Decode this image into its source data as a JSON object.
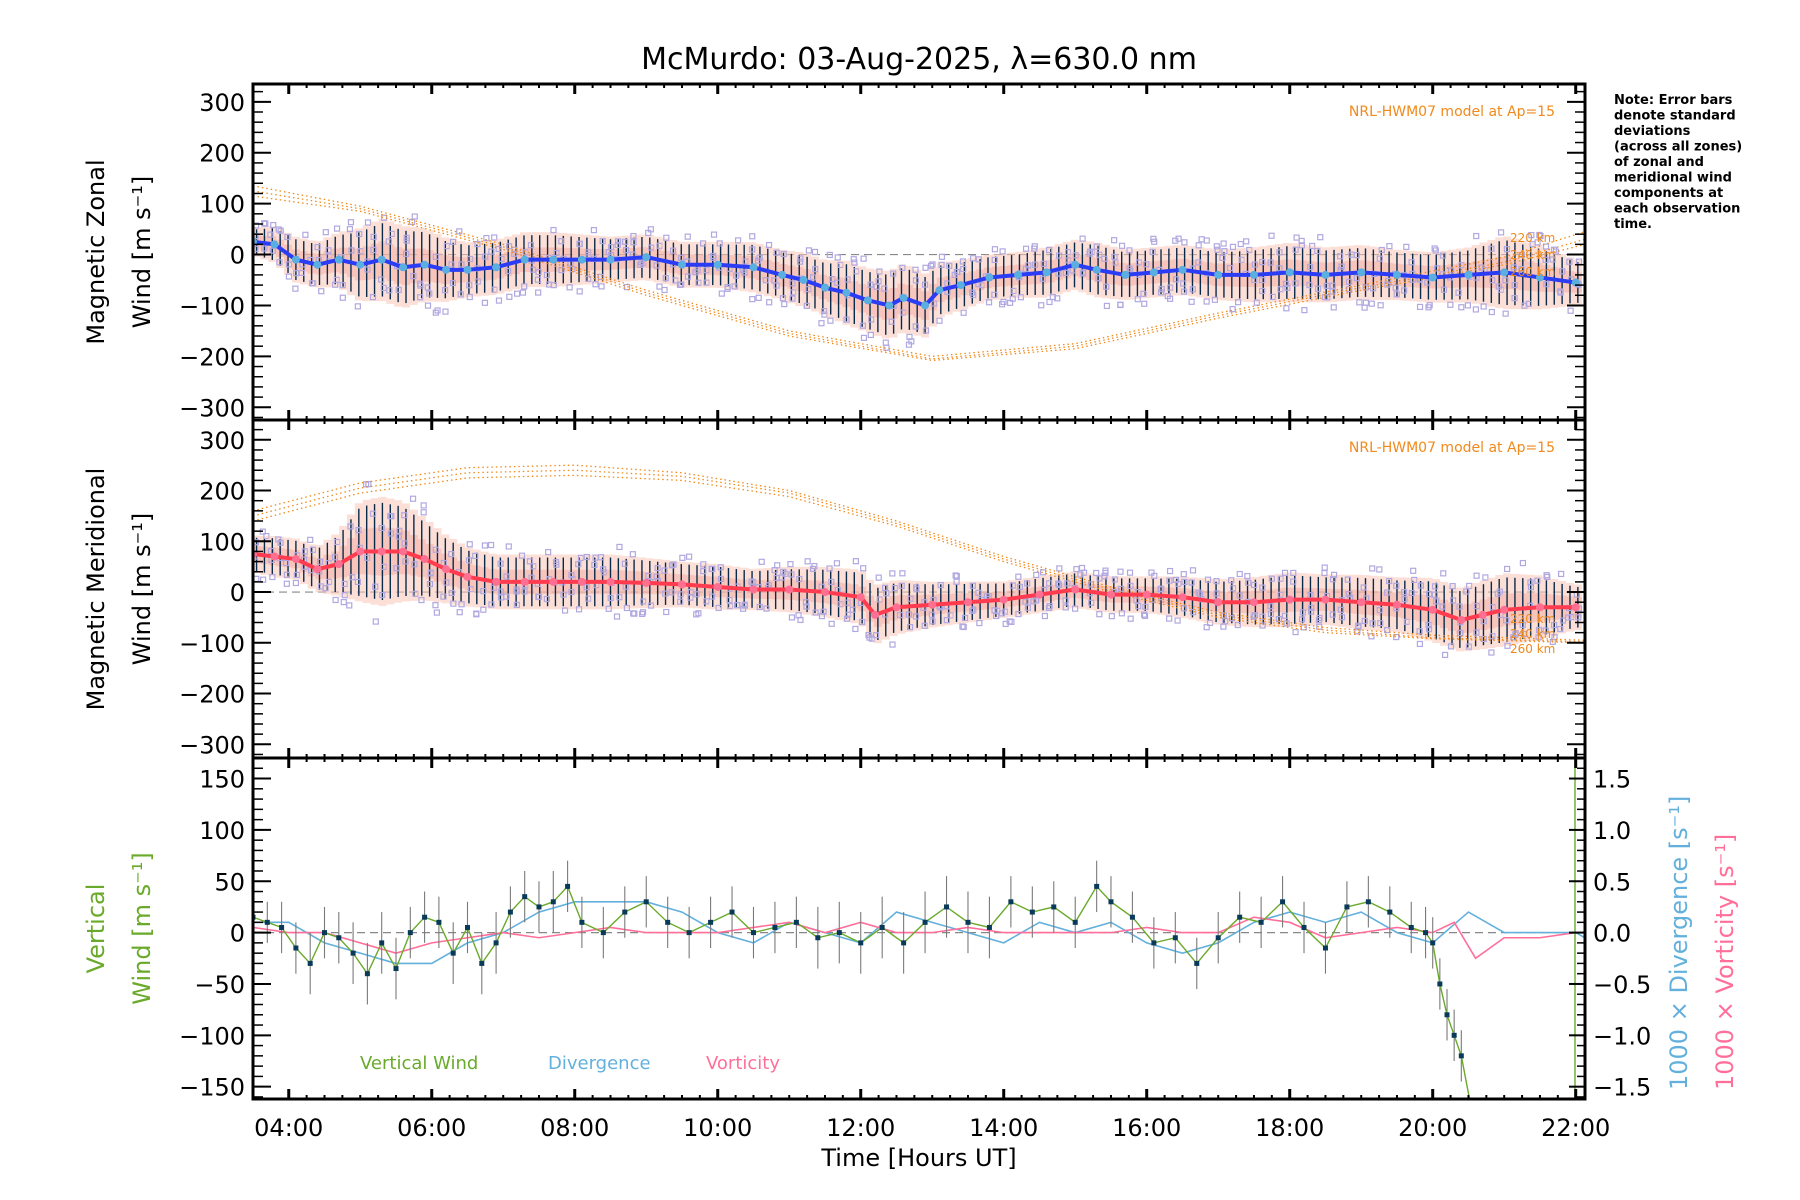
{
  "title": "McMurdo: 03-Aug-2025, λ=630.0 nm",
  "note": [
    "Note: Error bars",
    "denote standard",
    "deviations",
    "(across all zones)",
    "of zonal and",
    "meridional wind",
    "components at",
    "each observation",
    "time."
  ],
  "colors": {
    "zonal": "#2b3cf5",
    "zonal_marker": "#5aaee0",
    "meridional": "#ff3b50",
    "meridional_marker": "#ff6f91",
    "model": "#f08a1c",
    "zone_points": "#b0a8e0",
    "error_bar": "#0a2a4a",
    "vertical": "#6aaa2a",
    "divergence": "#64b0dc",
    "vorticity": "#ff6f9a",
    "vertical_marker": "#0a3a5a",
    "zero_line": "#888888"
  },
  "chart_data": [
    {
      "type": "line",
      "id": "zonal",
      "ylabel_line1": "Magnetic Zonal",
      "ylabel_line2": "Wind [m s⁻¹]",
      "ylim": [
        -325,
        335
      ],
      "yticks": [
        -300,
        -200,
        -100,
        0,
        100,
        200,
        300
      ],
      "ytick_labels": [
        "−300",
        "−200",
        "−100",
        "0",
        "100",
        "200",
        "300"
      ],
      "xlim": [
        3.5,
        22.13
      ],
      "model_label": "NRL-HWM07 model at Ap=15",
      "model_altitudes": [
        "220 km",
        "240 km",
        "260 km"
      ],
      "series": [
        {
          "name": "Zonal wind",
          "x": [
            3.5,
            3.8,
            4.1,
            4.4,
            4.7,
            5.0,
            5.3,
            5.6,
            5.9,
            6.2,
            6.5,
            6.9,
            7.3,
            7.7,
            8.1,
            8.5,
            9.0,
            9.5,
            10.0,
            10.5,
            10.9,
            11.2,
            11.5,
            11.8,
            12.1,
            12.4,
            12.6,
            12.9,
            13.1,
            13.4,
            13.8,
            14.2,
            14.6,
            15.0,
            15.3,
            15.7,
            16.1,
            16.5,
            17.0,
            17.5,
            18.0,
            18.5,
            19.0,
            19.5,
            20.0,
            20.5,
            21.0,
            21.5,
            22.0
          ],
          "y": [
            25,
            20,
            -10,
            -20,
            -10,
            -20,
            -10,
            -25,
            -20,
            -30,
            -30,
            -25,
            -10,
            -10,
            -10,
            -10,
            -5,
            -20,
            -20,
            -25,
            -40,
            -50,
            -65,
            -75,
            -90,
            -100,
            -85,
            -100,
            -70,
            -60,
            -45,
            -40,
            -35,
            -20,
            -30,
            -40,
            -35,
            -30,
            -40,
            -40,
            -35,
            -40,
            -35,
            -40,
            -45,
            -40,
            -35,
            -45,
            -55
          ],
          "err": [
            30,
            40,
            50,
            50,
            60,
            80,
            90,
            90,
            80,
            70,
            60,
            60,
            60,
            60,
            55,
            50,
            50,
            50,
            50,
            55,
            55,
            60,
            60,
            70,
            70,
            75,
            75,
            70,
            60,
            55,
            50,
            50,
            55,
            55,
            60,
            55,
            55,
            55,
            55,
            60,
            65,
            60,
            60,
            55,
            55,
            60,
            80,
            70,
            50
          ]
        },
        {
          "name": "HWM07 220 km",
          "x": [
            3.5,
            5,
            7,
            9,
            11,
            13,
            15,
            17,
            19,
            21,
            22.13
          ],
          "y": [
            135,
            95,
            20,
            -70,
            -150,
            -200,
            -175,
            -115,
            -60,
            -5,
            45
          ]
        },
        {
          "name": "HWM07 240 km",
          "x": [
            3.5,
            5,
            7,
            9,
            11,
            13,
            15,
            17,
            19,
            21,
            22.13
          ],
          "y": [
            125,
            90,
            15,
            -75,
            -155,
            -205,
            -180,
            -120,
            -65,
            -15,
            30
          ]
        },
        {
          "name": "HWM07 260 km",
          "x": [
            3.5,
            5,
            7,
            9,
            11,
            13,
            15,
            17,
            19,
            21,
            22.13
          ],
          "y": [
            115,
            85,
            10,
            -80,
            -160,
            -208,
            -185,
            -125,
            -70,
            -20,
            20
          ]
        }
      ]
    },
    {
      "type": "line",
      "id": "meridional",
      "ylabel_line1": "Magnetic Meridional",
      "ylabel_line2": "Wind [m s⁻¹]",
      "ylim": [
        -327,
        339
      ],
      "yticks": [
        -300,
        -200,
        -100,
        0,
        100,
        200,
        300
      ],
      "ytick_labels": [
        "−300",
        "−200",
        "−100",
        "0",
        "100",
        "200",
        "300"
      ],
      "xlim": [
        3.5,
        22.13
      ],
      "model_label": "NRL-HWM07 model at Ap=15",
      "model_altitudes": [
        "220 km",
        "240 km",
        "260 km"
      ],
      "series": [
        {
          "name": "Meridional wind",
          "x": [
            3.5,
            3.8,
            4.1,
            4.4,
            4.7,
            5.0,
            5.3,
            5.6,
            5.9,
            6.2,
            6.5,
            6.9,
            7.3,
            7.7,
            8.1,
            8.5,
            9.0,
            9.5,
            10.0,
            10.5,
            11.0,
            11.5,
            12.0,
            12.2,
            12.5,
            13.0,
            13.5,
            14.0,
            14.5,
            15.0,
            15.5,
            16.0,
            16.5,
            17.0,
            17.5,
            18.0,
            18.5,
            19.0,
            19.5,
            20.0,
            20.4,
            20.7,
            21.0,
            21.5,
            22.0
          ],
          "y": [
            75,
            70,
            65,
            45,
            55,
            80,
            80,
            80,
            65,
            45,
            30,
            20,
            20,
            20,
            20,
            20,
            18,
            15,
            10,
            5,
            5,
            0,
            -10,
            -45,
            -30,
            -25,
            -20,
            -15,
            -5,
            5,
            -5,
            -5,
            -10,
            -20,
            -20,
            -15,
            -15,
            -20,
            -25,
            -35,
            -55,
            -45,
            -35,
            -30,
            -30
          ],
          "err": [
            40,
            45,
            45,
            50,
            70,
            110,
            120,
            110,
            90,
            75,
            65,
            60,
            60,
            60,
            60,
            60,
            55,
            50,
            50,
            45,
            50,
            55,
            60,
            65,
            60,
            50,
            45,
            40,
            40,
            40,
            40,
            40,
            45,
            50,
            55,
            60,
            55,
            60,
            60,
            70,
            70,
            75,
            80,
            70,
            50
          ]
        },
        {
          "name": "HWM07 220 km",
          "x": [
            3.5,
            5,
            6.5,
            8,
            9.5,
            11,
            12.5,
            14,
            15.5,
            17,
            18.5,
            20,
            22.13
          ],
          "y": [
            160,
            215,
            245,
            250,
            235,
            200,
            140,
            70,
            10,
            -40,
            -70,
            -85,
            -95
          ]
        },
        {
          "name": "HWM07 240 km",
          "x": [
            3.5,
            5,
            6.5,
            8,
            9.5,
            11,
            12.5,
            14,
            15.5,
            17,
            18.5,
            20,
            22.13
          ],
          "y": [
            150,
            205,
            235,
            240,
            228,
            195,
            135,
            65,
            5,
            -45,
            -75,
            -90,
            -98
          ]
        },
        {
          "name": "HWM07 260 km",
          "x": [
            3.5,
            5,
            6.5,
            8,
            9.5,
            11,
            12.5,
            14,
            15.5,
            17,
            18.5,
            20,
            22.13
          ],
          "y": [
            140,
            195,
            225,
            230,
            220,
            188,
            130,
            60,
            0,
            -50,
            -80,
            -92,
            -100
          ]
        }
      ]
    },
    {
      "type": "line",
      "id": "vertical",
      "ylabel_line1": "Vertical",
      "ylabel_line2": "Wind [m s⁻¹]",
      "y2label_div": "1000 × Divergence [s⁻¹]",
      "y2label_vort": "1000 × Vorticity [s⁻¹]",
      "ylim": [
        -162,
        170
      ],
      "yticks": [
        -150,
        -100,
        -50,
        0,
        50,
        100,
        150
      ],
      "ytick_labels": [
        "−150",
        "−100",
        "−50",
        "0",
        "50",
        "100",
        "150"
      ],
      "y2lim": [
        -1.62,
        1.7
      ],
      "y2ticks": [
        -1.5,
        -1.0,
        -0.5,
        0.0,
        0.5,
        1.0,
        1.5
      ],
      "y2tick_labels": [
        "−1.5",
        "−1.0",
        "−0.5",
        "0.0",
        "0.5",
        "1.0",
        "1.5"
      ],
      "xlim": [
        3.5,
        22.13
      ],
      "xticks": [
        4,
        6,
        8,
        10,
        12,
        14,
        16,
        18,
        20,
        22
      ],
      "xtick_labels": [
        "04:00",
        "06:00",
        "08:00",
        "10:00",
        "12:00",
        "14:00",
        "16:00",
        "18:00",
        "20:00",
        "22:00"
      ],
      "xlabel": "Time [Hours UT]",
      "legend": [
        "Vertical Wind",
        "Divergence",
        "Vorticity"
      ],
      "series": [
        {
          "name": "Vertical Wind",
          "x": [
            3.5,
            3.7,
            3.9,
            4.1,
            4.3,
            4.5,
            4.7,
            4.9,
            5.1,
            5.3,
            5.5,
            5.7,
            5.9,
            6.1,
            6.3,
            6.5,
            6.7,
            6.9,
            7.1,
            7.3,
            7.5,
            7.7,
            7.9,
            8.1,
            8.4,
            8.7,
            9.0,
            9.3,
            9.6,
            9.9,
            10.2,
            10.5,
            10.8,
            11.1,
            11.4,
            11.7,
            12.0,
            12.3,
            12.6,
            12.9,
            13.2,
            13.5,
            13.8,
            14.1,
            14.4,
            14.7,
            15.0,
            15.3,
            15.5,
            15.8,
            16.1,
            16.4,
            16.7,
            17.0,
            17.3,
            17.6,
            17.9,
            18.2,
            18.5,
            18.8,
            19.1,
            19.4,
            19.7,
            19.9,
            20.0,
            20.1,
            20.2,
            20.3,
            20.4
          ],
          "y": [
            15,
            10,
            5,
            -15,
            -30,
            0,
            -5,
            -20,
            -40,
            -10,
            -35,
            0,
            15,
            10,
            -20,
            5,
            -30,
            -10,
            20,
            35,
            25,
            30,
            45,
            10,
            0,
            20,
            30,
            10,
            0,
            10,
            20,
            0,
            5,
            10,
            -5,
            0,
            -10,
            5,
            -10,
            10,
            25,
            10,
            5,
            30,
            20,
            25,
            10,
            45,
            30,
            15,
            -10,
            -5,
            -30,
            -5,
            15,
            10,
            30,
            5,
            -15,
            25,
            30,
            20,
            5,
            0,
            -10,
            -50,
            -80,
            -100,
            -120
          ],
          "err": [
            20,
            20,
            25,
            25,
            30,
            25,
            25,
            30,
            30,
            30,
            30,
            25,
            25,
            25,
            30,
            25,
            30,
            30,
            25,
            25,
            25,
            30,
            25,
            25,
            25,
            25,
            25,
            25,
            25,
            25,
            25,
            25,
            25,
            25,
            30,
            30,
            30,
            30,
            30,
            30,
            30,
            30,
            30,
            25,
            25,
            25,
            25,
            25,
            25,
            25,
            25,
            25,
            25,
            25,
            25,
            25,
            25,
            25,
            25,
            25,
            25,
            25,
            25,
            25,
            25,
            25,
            25,
            25,
            25
          ]
        },
        {
          "name": "Divergence",
          "axis": "y2",
          "x": [
            3.5,
            4.0,
            4.5,
            5.0,
            5.5,
            6.0,
            6.5,
            7.0,
            7.5,
            8.0,
            8.5,
            9.0,
            9.5,
            10.0,
            10.5,
            11.0,
            11.5,
            12.0,
            12.5,
            13.0,
            13.5,
            14.0,
            14.5,
            15.0,
            15.5,
            16.0,
            16.5,
            17.0,
            17.5,
            18.0,
            18.5,
            19.0,
            19.5,
            20.0,
            20.5,
            21.0,
            21.5,
            22.0,
            22.13
          ],
          "y": [
            0.1,
            0.1,
            -0.1,
            -0.2,
            -0.3,
            -0.3,
            -0.1,
            0.0,
            0.2,
            0.3,
            0.3,
            0.3,
            0.2,
            0.0,
            -0.1,
            0.1,
            0.0,
            -0.1,
            0.2,
            0.1,
            0.0,
            -0.1,
            0.1,
            0.0,
            0.1,
            -0.1,
            -0.2,
            -0.1,
            0.1,
            0.2,
            0.1,
            0.2,
            0.0,
            -0.1,
            0.2,
            0.0,
            0.0,
            0.0,
            -0.05
          ]
        },
        {
          "name": "Vorticity",
          "axis": "y2",
          "x": [
            3.5,
            4.0,
            4.5,
            5.0,
            5.5,
            6.0,
            6.5,
            7.0,
            7.5,
            8.0,
            8.5,
            9.0,
            9.5,
            10.0,
            10.5,
            11.0,
            11.5,
            12.0,
            12.5,
            13.0,
            13.5,
            14.0,
            14.5,
            15.0,
            15.5,
            16.0,
            16.5,
            17.0,
            17.5,
            18.0,
            18.5,
            19.0,
            19.5,
            20.0,
            20.3,
            20.6,
            21.0,
            21.5,
            22.0,
            22.13
          ],
          "y": [
            0.05,
            0.0,
            0.0,
            -0.1,
            -0.2,
            -0.1,
            -0.05,
            0.0,
            -0.05,
            0.0,
            0.05,
            0.0,
            0.0,
            0.0,
            0.05,
            0.1,
            0.0,
            0.1,
            0.0,
            0.0,
            0.05,
            0.0,
            0.0,
            0.0,
            0.0,
            0.05,
            0.0,
            0.0,
            0.15,
            0.1,
            -0.05,
            0.0,
            0.05,
            0.0,
            0.1,
            -0.25,
            -0.05,
            -0.05,
            0.0,
            0.0
          ]
        }
      ]
    }
  ]
}
